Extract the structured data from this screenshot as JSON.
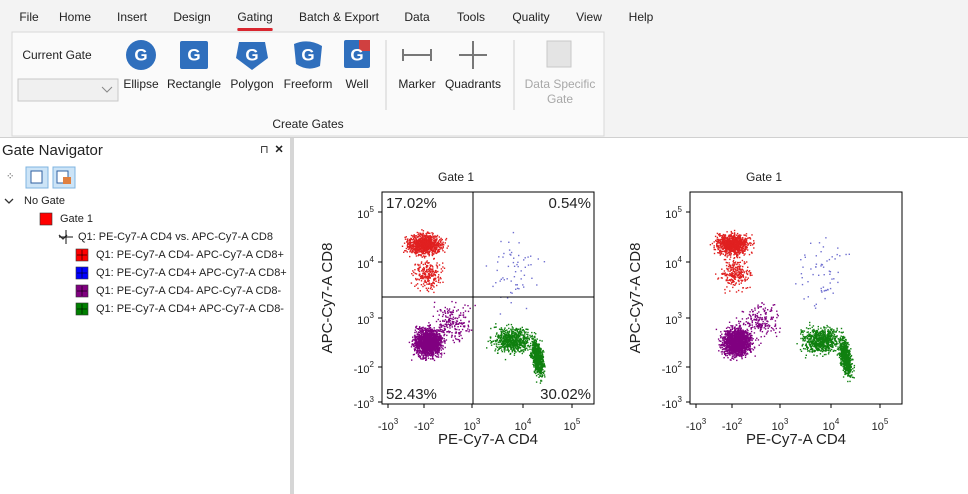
{
  "menu": {
    "tabs": [
      "File",
      "Home",
      "Insert",
      "Design",
      "Gating",
      "Batch & Export",
      "Data",
      "Tools",
      "Quality",
      "View",
      "Help"
    ],
    "active": 4
  },
  "ribbon": {
    "current_gate_label": "Current Gate",
    "buttons": [
      "Ellipse",
      "Rectangle",
      "Polygon",
      "Freeform",
      "Well",
      "Marker",
      "Quadrants"
    ],
    "disabled_button": [
      "Data Specific",
      "Gate"
    ],
    "group_label": "Create Gates"
  },
  "navigator": {
    "title": "Gate Navigator",
    "tree": [
      {
        "label": "No Gate",
        "depth": 0
      },
      {
        "label": "Gate 1",
        "depth": 1,
        "color": "#ff0000"
      },
      {
        "label": "Q1: PE-Cy7-A CD4 vs. APC-Cy7-A CD8",
        "depth": 2
      },
      {
        "label": "Q1: PE-Cy7-A CD4- APC-Cy7-A CD8+",
        "depth": 3,
        "color": "#ff0000"
      },
      {
        "label": "Q1: PE-Cy7-A CD4+ APC-Cy7-A CD8+",
        "depth": 3,
        "color": "#0000ff"
      },
      {
        "label": "Q1: PE-Cy7-A CD4- APC-Cy7-A CD8-",
        "depth": 3,
        "color": "#800080"
      },
      {
        "label": "Q1: PE-Cy7-A CD4+ APC-Cy7-A CD8-",
        "depth": 3,
        "color": "#008000"
      }
    ]
  },
  "plots": [
    {
      "title": "Gate 1",
      "x_label": "PE-Cy7-A CD4",
      "y_label": "APC-Cy7-A CD8",
      "quadrant_labels": [
        "17.02%",
        "0.54%",
        "52.43%",
        "30.02%"
      ]
    },
    {
      "title": "Gate 1",
      "x_label": "PE-Cy7-A CD4",
      "y_label": "APC-Cy7-A CD8"
    }
  ],
  "xticks": [
    {
      "base": "-10",
      "exp": "3"
    },
    {
      "base": "-10",
      "exp": "2"
    },
    {
      "base": "10",
      "exp": "3"
    },
    {
      "base": "10",
      "exp": "4"
    },
    {
      "base": "10",
      "exp": "5"
    }
  ],
  "yticks": [
    {
      "base": "10",
      "exp": "5"
    },
    {
      "base": "10",
      "exp": "4"
    },
    {
      "base": "10",
      "exp": "3"
    },
    {
      "base": "-10",
      "exp": "2"
    },
    {
      "base": "-10",
      "exp": "3"
    }
  ]
}
